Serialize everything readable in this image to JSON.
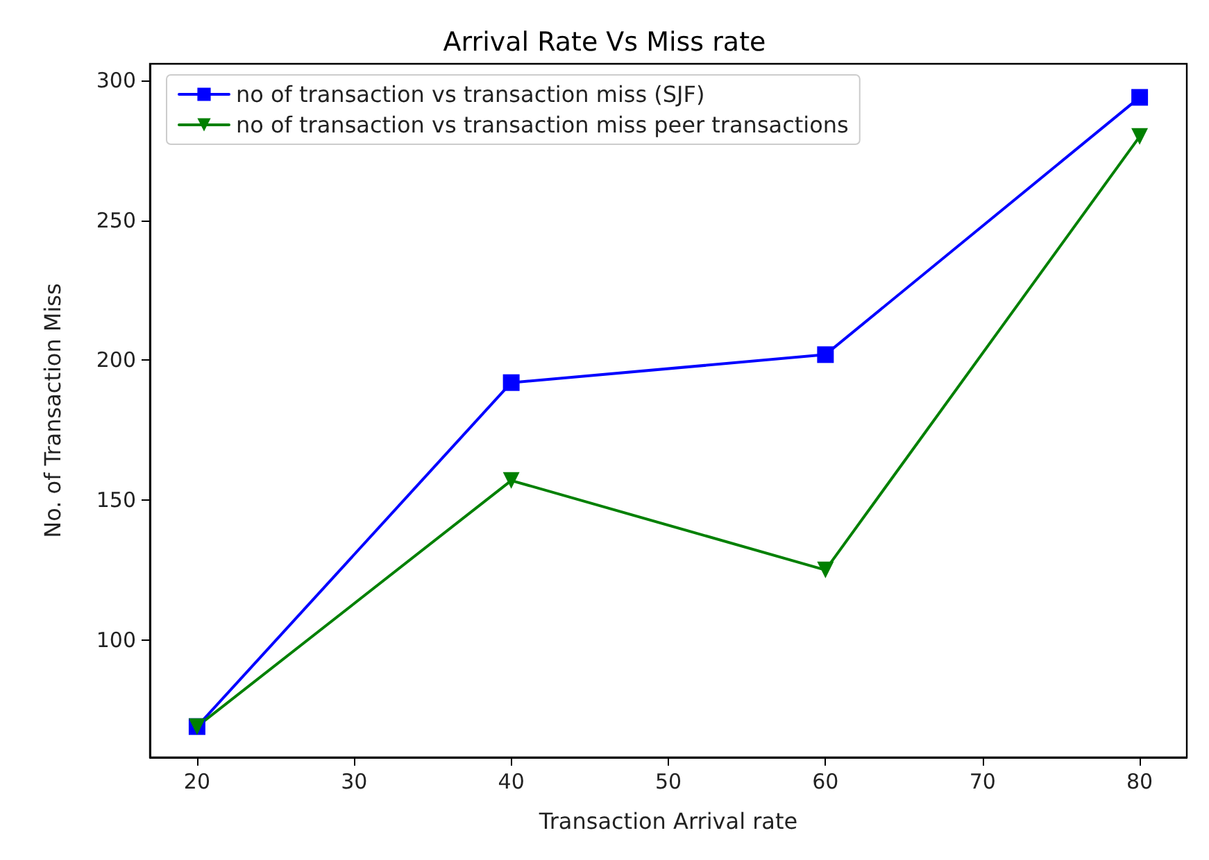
{
  "chart_data": {
    "type": "line",
    "title": "Arrival Rate Vs Miss rate",
    "xlabel": "Transaction Arrival rate",
    "ylabel": "No. of Transaction Miss",
    "x": [
      20,
      40,
      60,
      80
    ],
    "series": [
      {
        "name": "no of transaction vs transaction miss (SJF)",
        "color": "#0000ff",
        "marker": "square",
        "values": [
          69,
          192,
          202,
          294
        ]
      },
      {
        "name": "no of transaction vs transaction miss peer transactions",
        "color": "#008000",
        "marker": "triangle",
        "values": [
          69,
          157,
          125,
          280
        ]
      }
    ],
    "xlim": [
      17,
      83
    ],
    "xticks": [
      20,
      30,
      40,
      50,
      60,
      70,
      80
    ],
    "ylim": [
      58,
      306
    ],
    "yticks": [
      100,
      150,
      200,
      250,
      300
    ],
    "grid": false,
    "legend": "top",
    "line_style": "solid"
  }
}
